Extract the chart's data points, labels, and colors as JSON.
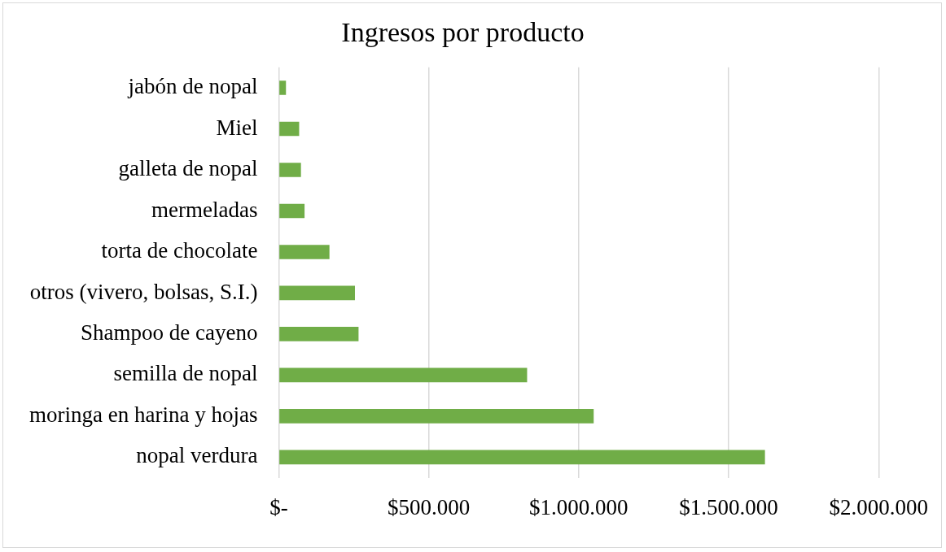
{
  "chart_data": {
    "type": "bar",
    "orientation": "horizontal",
    "title": "Ingresos por producto",
    "categories": [
      "jabón de nopal",
      "Miel",
      "galleta de nopal",
      "mermeladas",
      "torta de chocolate",
      "otros (vivero, bolsas, S.I.)",
      "Shampoo de cayeno",
      "semilla de nopal",
      "moringa en harina y hojas",
      "nopal verdura"
    ],
    "values": [
      24000,
      68000,
      74000,
      86000,
      169000,
      254000,
      266000,
      828000,
      1050000,
      1621000
    ],
    "color": "#70ad47",
    "xlim": [
      0,
      2000000
    ],
    "xticks": [
      {
        "value": 0,
        "label": "$-"
      },
      {
        "value": 500000,
        "label": "$500.000"
      },
      {
        "value": 1000000,
        "label": "$1.000.000"
      },
      {
        "value": 1500000,
        "label": "$1.500.000"
      },
      {
        "value": 2000000,
        "label": "$2.000.000"
      }
    ],
    "grid": "x",
    "legend": false
  }
}
